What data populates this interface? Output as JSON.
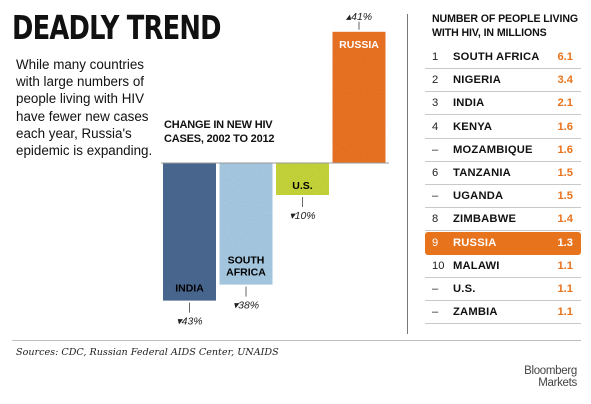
{
  "title": "DEADLY TREND",
  "intro": "While many countries with large numbers of people living with HIV have fewer new cases each year, Russia's epidemic is expanding.",
  "chart_data": {
    "type": "bar",
    "title": "CHANGE IN NEW HIV CASES, 2002 TO 2012",
    "categories": [
      "INDIA",
      "SOUTH AFRICA",
      "U.S.",
      "RUSSIA"
    ],
    "values": [
      -43,
      -38,
      -10,
      41
    ],
    "value_labels": [
      "▾43%",
      "▾38%",
      "▾10%",
      "▴41%"
    ],
    "colors": [
      "#4a6a93",
      "#a9cde6",
      "#c9d83a",
      "#ee7425"
    ],
    "label_colors": [
      "#000000",
      "#000000",
      "#000000",
      "#ffffff"
    ]
  },
  "table": {
    "title": "NUMBER OF PEOPLE LIVING WITH HIV, IN MILLIONS",
    "rows": [
      {
        "rank": "1",
        "country": "SOUTH AFRICA",
        "value": "6.1"
      },
      {
        "rank": "2",
        "country": "NIGERIA",
        "value": "3.4"
      },
      {
        "rank": "3",
        "country": "INDIA",
        "value": "2.1"
      },
      {
        "rank": "4",
        "country": "KENYA",
        "value": "1.6"
      },
      {
        "rank": "–",
        "country": "MOZAMBIQUE",
        "value": "1.6"
      },
      {
        "rank": "6",
        "country": "TANZANIA",
        "value": "1.5"
      },
      {
        "rank": "–",
        "country": "UGANDA",
        "value": "1.5"
      },
      {
        "rank": "8",
        "country": "ZIMBABWE",
        "value": "1.4"
      },
      {
        "rank": "9",
        "country": "RUSSIA",
        "value": "1.3",
        "highlight": true
      },
      {
        "rank": "10",
        "country": "MALAWI",
        "value": "1.1"
      },
      {
        "rank": "–",
        "country": "U.S.",
        "value": "1.1"
      },
      {
        "rank": "–",
        "country": "ZAMBIA",
        "value": "1.1"
      }
    ]
  },
  "sources": "Sources: CDC, Russian Federal AIDS Center, UNAIDS",
  "logo": {
    "line1": "Bloomberg",
    "line2": "Markets"
  }
}
